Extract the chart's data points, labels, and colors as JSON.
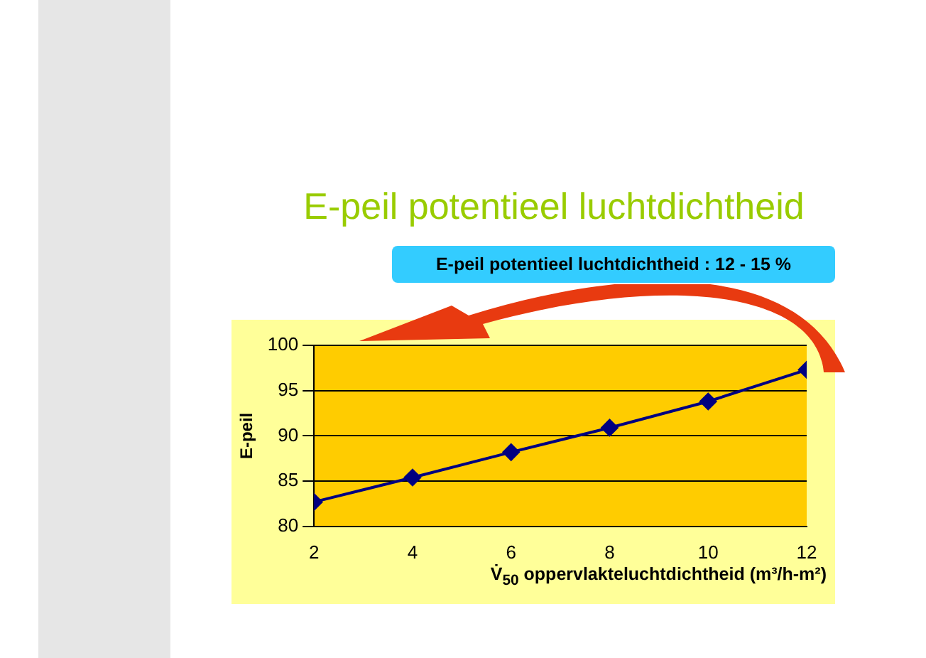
{
  "chart_data": {
    "type": "line",
    "title": "E-peil potentieel luchtdichtheid",
    "annotations": [
      "E-peil potentieel luchtdichtheid : 12 - 15 %"
    ],
    "xlabel": "V̇$_{50}$  oppervlakteluchtdichtheid (m³/h-m²)",
    "ylabel": "E-peil",
    "x": [
      2,
      4,
      6,
      8,
      10,
      12
    ],
    "series": [
      {
        "color": "#000080",
        "values": [
          82.7,
          85.4,
          88.2,
          90.9,
          93.8,
          97.3
        ]
      }
    ],
    "xlim": [
      2,
      12
    ],
    "xticks": [
      2,
      4,
      6,
      8,
      10,
      12
    ],
    "ylim": [
      80,
      100
    ],
    "yticks": [
      80,
      85,
      90,
      95,
      100
    ],
    "grid": "y",
    "marker": "diamond",
    "line_style": "solid",
    "legend": false
  }
}
